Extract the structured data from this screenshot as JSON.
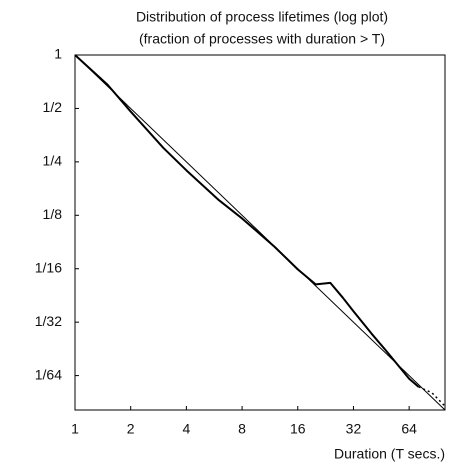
{
  "chart_data": {
    "type": "line",
    "title": "Distribution of process lifetimes (log plot)",
    "subtitle": "(fraction of processes with duration > T)",
    "x_label": "Duration (T secs.)",
    "xscale": "log",
    "yscale": "log",
    "xlim": [
      1,
      100
    ],
    "ylim": [
      0.01,
      1
    ],
    "xticks": [
      1,
      2,
      4,
      8,
      16,
      32,
      64
    ],
    "yticks": [
      1,
      {
        "value": 0.5,
        "label": "1/2"
      },
      {
        "value": 0.25,
        "label": "1/4"
      },
      {
        "value": 0.125,
        "label": "1/8"
      },
      {
        "value": 0.0625,
        "label": "1/16"
      },
      {
        "value": 0.03125,
        "label": "1/32"
      },
      {
        "value": 0.015625,
        "label": "1/64"
      }
    ],
    "grid": false,
    "series": [
      {
        "color": "#000000",
        "style": "solid",
        "x": [
          1,
          1.5,
          2,
          3,
          4,
          6,
          8,
          12,
          16,
          20,
          24,
          28,
          32,
          40,
          48,
          64,
          72
        ],
        "values": [
          1,
          0.68,
          0.48,
          0.3,
          0.224,
          0.152,
          0.12,
          0.083,
          0.062,
          0.051,
          0.052,
          0.043,
          0.036,
          0.027,
          0.0216,
          0.015,
          0.0135
        ]
      },
      {
        "color": "#000000",
        "style": "dotted",
        "x": [
          72,
          85,
          100
        ],
        "values": [
          0.0135,
          0.0125,
          0.0105
        ]
      },
      {
        "color": "#000000",
        "style": "thin",
        "x": [
          1,
          100
        ],
        "values": [
          1,
          0.01
        ]
      }
    ]
  }
}
